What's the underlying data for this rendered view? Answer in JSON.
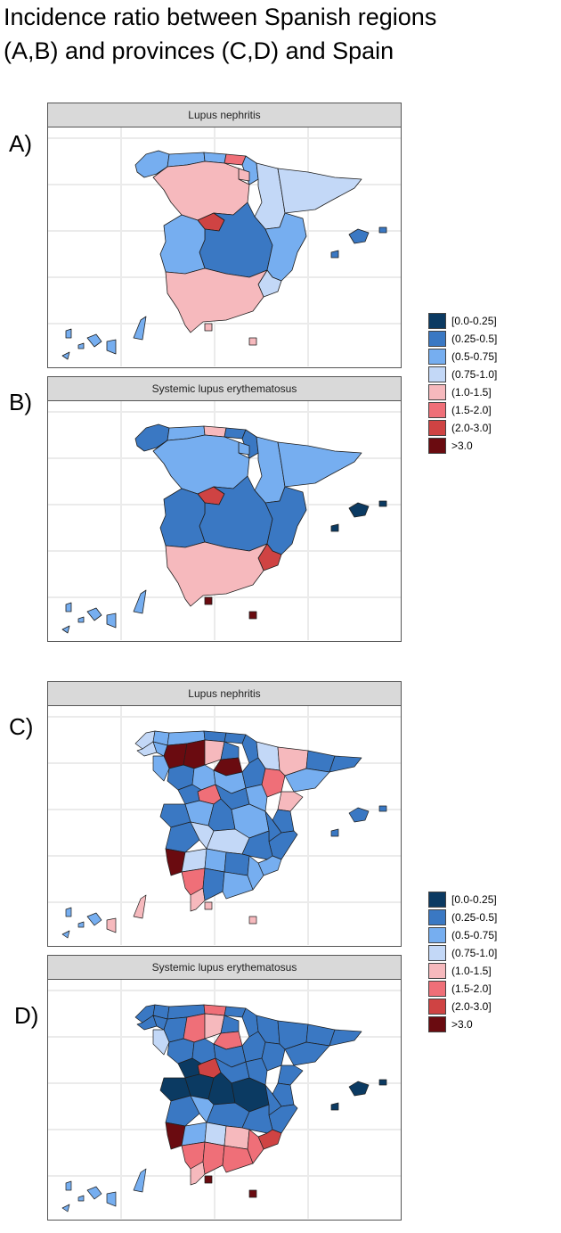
{
  "title": {
    "line1": "Incidence ratio between Spanish regions",
    "line2": "(A,B) and provinces (C,D) and Spain"
  },
  "panels": [
    {
      "letter": "A)",
      "strip": "Lupus nephritis",
      "level": "regions"
    },
    {
      "letter": "B)",
      "strip": "Systemic lupus erythematosus",
      "level": "regions"
    },
    {
      "letter": "C)",
      "strip": "Lupus nephritis",
      "level": "provinces"
    },
    {
      "letter": "D)",
      "strip": "Systemic lupus erythematosus",
      "level": "provinces"
    }
  ],
  "legend": {
    "items": [
      {
        "label": "[0.0-0.25]",
        "color": "#0b3a62"
      },
      {
        "label": "(0.25-0.5]",
        "color": "#3a78c3"
      },
      {
        "label": "(0.5-0.75]",
        "color": "#76aef0"
      },
      {
        "label": "(0.75-1.0]",
        "color": "#c3d8f7"
      },
      {
        "label": "(1.0-1.5]",
        "color": "#f6b9bd"
      },
      {
        "label": "(1.5-2.0]",
        "color": "#ef6f78"
      },
      {
        "label": "(2.0-3.0]",
        "color": "#cf4343"
      },
      {
        "label": ">3.0",
        "color": "#6a0b10"
      }
    ]
  },
  "colors": {
    "border": "#1e1e1e",
    "gridline": "#ebebeb",
    "strip_bg": "#d9d9d9"
  }
}
